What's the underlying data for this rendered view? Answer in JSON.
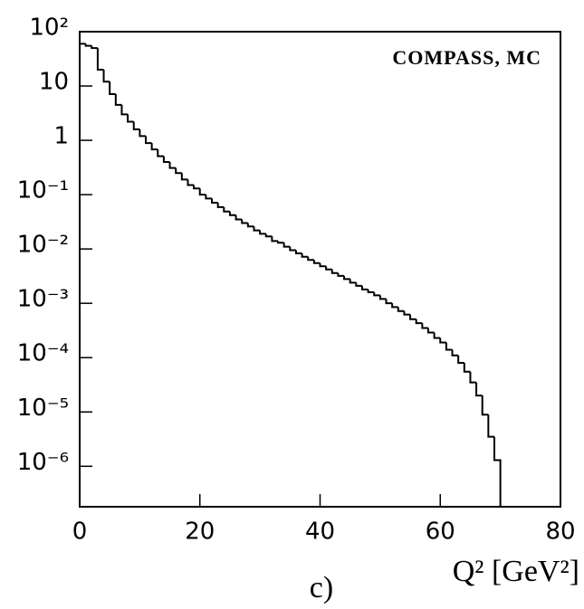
{
  "chart_data": {
    "type": "histogram",
    "annotations": [
      "COMPASS, MC",
      "c)"
    ],
    "xlabel": "Q² [GeV²]",
    "bins": [
      0,
      1,
      2,
      3,
      4,
      5,
      6,
      7,
      8,
      9,
      10,
      11,
      12,
      13,
      14,
      15,
      16,
      17,
      18,
      19,
      20,
      21,
      22,
      23,
      24,
      25,
      26,
      27,
      28,
      29,
      30,
      31,
      32,
      33,
      34,
      35,
      36,
      37,
      38,
      39,
      40,
      41,
      42,
      43,
      44,
      45,
      46,
      47,
      48,
      49,
      50,
      51,
      52,
      53,
      54,
      55,
      56,
      57,
      58,
      59,
      60,
      61,
      62,
      63,
      64,
      65,
      66,
      67,
      68,
      69,
      70
    ],
    "values": [
      60,
      55,
      50,
      20,
      12,
      7.1,
      4.5,
      3.0,
      2.2,
      1.6,
      1.2,
      0.89,
      0.68,
      0.51,
      0.4,
      0.31,
      0.25,
      0.19,
      0.15,
      0.13,
      0.1,
      0.085,
      0.071,
      0.059,
      0.049,
      0.042,
      0.035,
      0.03,
      0.026,
      0.022,
      0.019,
      0.017,
      0.014,
      0.013,
      0.011,
      0.0095,
      0.0083,
      0.0072,
      0.0063,
      0.0055,
      0.0048,
      0.0042,
      0.0036,
      0.0032,
      0.0028,
      0.0024,
      0.0021,
      0.0018,
      0.0016,
      0.0014,
      0.0012,
      0.001,
      0.00085,
      0.00072,
      0.00062,
      0.00051,
      0.00043,
      0.00035,
      0.00029,
      0.00023,
      0.00019,
      0.00014,
      0.00011,
      8e-05,
      5.5e-05,
      3.5e-05,
      2e-05,
      8.9e-06,
      3.5e-06,
      1.3e-06
    ],
    "color": "#000000",
    "log_y": true,
    "xlim": [
      0,
      80
    ],
    "xticks": [
      0,
      20,
      40,
      60,
      80
    ],
    "ylim": [
      1.8e-07,
      100
    ],
    "yticks": [
      {
        "value": 100,
        "label": "10²"
      },
      10,
      1,
      {
        "value": 0.1,
        "label": "10⁻¹"
      },
      {
        "value": 0.01,
        "label": "10⁻²"
      },
      {
        "value": 0.001,
        "label": "10⁻³"
      },
      {
        "value": 0.0001,
        "label": "10⁻⁴"
      },
      {
        "value": 1e-05,
        "label": "10⁻⁵"
      },
      {
        "value": 1e-06,
        "label": "10⁻⁶"
      }
    ]
  }
}
